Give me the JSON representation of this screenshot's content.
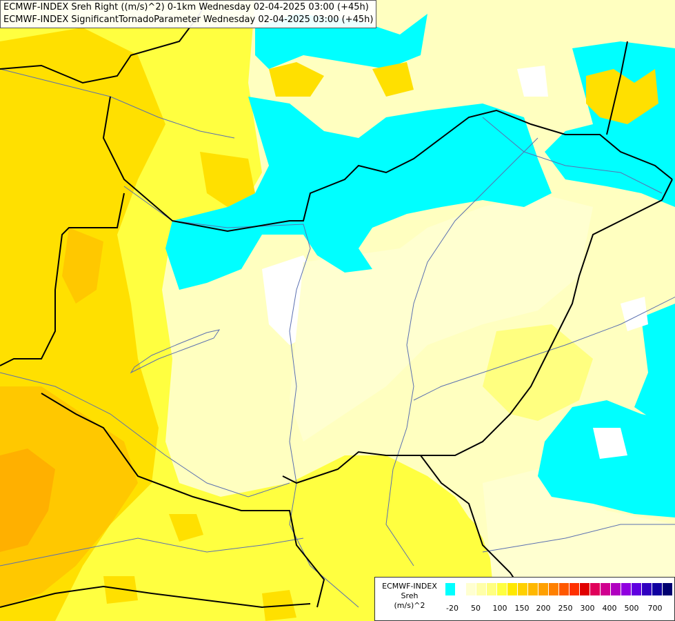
{
  "titles": {
    "line1": "ECMWF-INDEX Sreh Right ((m/s)^2) 0-1km Wednesday 02-04-2025 03:00 (+45h)",
    "line2": "ECMWF-INDEX SignificantTornadoParameter Wednesday 02-04-2025 03:00 (+45h)"
  },
  "legend": {
    "line1": "ECMWF-INDEX",
    "line2": "Sreh",
    "line3": "(m/s)^2",
    "colors": [
      "#00ffff",
      "#ffffff",
      "#ffffd0",
      "#ffffa8",
      "#ffff80",
      "#ffff40",
      "#ffe800",
      "#ffd000",
      "#ffb800",
      "#ffa000",
      "#ff8000",
      "#ff5800",
      "#ff3000",
      "#e00000",
      "#e0005a",
      "#d00090",
      "#b000c0",
      "#9000e0",
      "#6000e0",
      "#3000c0",
      "#1000a0",
      "#000070"
    ],
    "ticks": [
      "-20",
      "50",
      "100",
      "150",
      "200",
      "250",
      "300",
      "400",
      "500",
      "700"
    ]
  },
  "colors": {
    "cyan": "#00ffff",
    "white": "#ffffff",
    "pale": "#ffffc0",
    "light_yellow": "#ffff80",
    "yellow": "#ffff00",
    "gold": "#ffe000",
    "orange": "#ffc800",
    "deep_orange": "#ffb000",
    "border": "#000000",
    "river": "#5a6fb0"
  }
}
